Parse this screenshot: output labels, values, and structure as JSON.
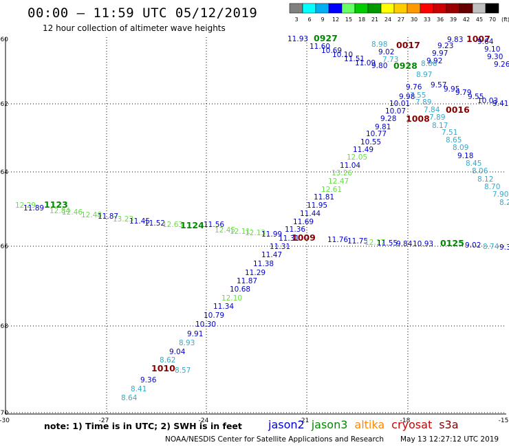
{
  "header": {
    "title": "00:00 – 11:59 UTC 05/12/2019",
    "subtitle": "12 hour collection of altimeter wave heights"
  },
  "colorbar": {
    "labels": [
      "3",
      "6",
      "9",
      "12",
      "15",
      "18",
      "21",
      "24",
      "27",
      "30",
      "33",
      "36",
      "39",
      "42",
      "45",
      "70",
      "(ft)"
    ],
    "colors": [
      "#808080",
      "#00ffff",
      "#00b0f0",
      "#0000ff",
      "#66ff66",
      "#00cc00",
      "#009900",
      "#ffff00",
      "#ffcc00",
      "#ff9900",
      "#ff0000",
      "#cc0000",
      "#990000",
      "#660000",
      "#c0c0c0",
      "#000000"
    ]
  },
  "colors": {
    "jason2": "#0000cc",
    "jason3": "#008800",
    "altika": "#ff8800",
    "cryosat": "#cc0000",
    "s3a": "#800000",
    "cyan": "#33aacc",
    "lightgreen": "#66dd44",
    "darkred": "#880000"
  },
  "axes": {
    "x_ticks": [
      "-27",
      "-24",
      "-21",
      "-18",
      "-15"
    ],
    "y_ticks": [
      "-60",
      "-62",
      "-64",
      "-66",
      "-68",
      "-70"
    ],
    "corner_label": "-30"
  },
  "labels": [
    {
      "t": "11.93",
      "x": 0.0,
      "y": 0.0,
      "c": "jason2"
    }
  ],
  "footer": {
    "note": "note: 1) Time is in UTC; 2) SWH is in feet",
    "credit": "NOAA/NESDIS Center for Satellite Applications and Research",
    "timestamp": "May 13 12:27:12 UTC 2019",
    "legend": [
      {
        "name": "jason2",
        "color": "#0000cc"
      },
      {
        "name": "jason3",
        "color": "#008800"
      },
      {
        "name": "altika",
        "color": "#ff8800"
      },
      {
        "name": "cryosat",
        "color": "#cc0000"
      },
      {
        "name": "s3a",
        "color": "#800000"
      }
    ]
  },
  "track_labels": [
    {
      "t": "11.93",
      "c": "jason2"
    },
    {
      "t": "0927",
      "c": "jason3",
      "big": true
    },
    {
      "t": "11.60",
      "c": "jason2"
    },
    {
      "t": "10.69",
      "c": "jason2"
    },
    {
      "t": "10.10",
      "c": "jason2"
    },
    {
      "t": "11.51",
      "c": "jason2"
    },
    {
      "t": "11.09",
      "c": "jason2"
    },
    {
      "t": "8.98",
      "c": "cyan"
    },
    {
      "t": "0017",
      "c": "darkred",
      "big": true
    },
    {
      "t": "9.02",
      "c": "jason2"
    },
    {
      "t": "7.73",
      "c": "cyan"
    },
    {
      "t": "9.80",
      "c": "jason2"
    },
    {
      "t": "0928",
      "c": "jason3",
      "big": true
    },
    {
      "t": "8.86",
      "c": "cyan"
    },
    {
      "t": "9.83",
      "c": "jason2"
    },
    {
      "t": "1007",
      "c": "darkred",
      "big": true
    },
    {
      "t": "9.64",
      "c": "jason2"
    },
    {
      "t": "9.23",
      "c": "jason2"
    },
    {
      "t": "9.10",
      "c": "jason2"
    },
    {
      "t": "9.97",
      "c": "jason2"
    },
    {
      "t": "9.30",
      "c": "jason2"
    },
    {
      "t": "9.92",
      "c": "jason2"
    },
    {
      "t": "9.26",
      "c": "jason2"
    },
    {
      "t": "8.97",
      "c": "cyan"
    },
    {
      "t": "9.57",
      "c": "jason2"
    },
    {
      "t": "9.95",
      "c": "jason2"
    },
    {
      "t": "9.79",
      "c": "jason2"
    },
    {
      "t": "9.55",
      "c": "jason2"
    },
    {
      "t": "10.03",
      "c": "jason2"
    },
    {
      "t": "9.41",
      "c": "jason2"
    },
    {
      "t": "9.76",
      "c": "jason2"
    },
    {
      "t": "7.55",
      "c": "cyan"
    },
    {
      "t": "9.98",
      "c": "jason2"
    },
    {
      "t": "7.89",
      "c": "cyan"
    },
    {
      "t": "10.01",
      "c": "jason2"
    },
    {
      "t": "7.84",
      "c": "cyan"
    },
    {
      "t": "0016",
      "c": "darkred",
      "big": true
    },
    {
      "t": "10.07",
      "c": "jason2"
    },
    {
      "t": "7.89",
      "c": "cyan"
    },
    {
      "t": "9.28",
      "c": "jason2"
    },
    {
      "t": "1008",
      "c": "darkred",
      "big": true
    },
    {
      "t": "8.17",
      "c": "cyan"
    },
    {
      "t": "9.81",
      "c": "jason2"
    },
    {
      "t": "7.51",
      "c": "cyan"
    },
    {
      "t": "10.77",
      "c": "jason2"
    },
    {
      "t": "8.65",
      "c": "cyan"
    },
    {
      "t": "10.55",
      "c": "jason2"
    },
    {
      "t": "8.09",
      "c": "cyan"
    },
    {
      "t": "11.49",
      "c": "jason2"
    },
    {
      "t": "9.18",
      "c": "jason2"
    },
    {
      "t": "12.05",
      "c": "lightgreen"
    },
    {
      "t": "8.45",
      "c": "cyan"
    },
    {
      "t": "11.04",
      "c": "jason2"
    },
    {
      "t": "8.06",
      "c": "cyan"
    },
    {
      "t": "13.26",
      "c": "lightgreen"
    },
    {
      "t": "8.12",
      "c": "cyan"
    },
    {
      "t": "12.47",
      "c": "lightgreen"
    },
    {
      "t": "8.70",
      "c": "cyan"
    },
    {
      "t": "12.61",
      "c": "lightgreen"
    },
    {
      "t": "7.90",
      "c": "cyan"
    },
    {
      "t": "11.81",
      "c": "jason2"
    },
    {
      "t": "8.2",
      "c": "cyan"
    },
    {
      "t": "11.95",
      "c": "jason2"
    },
    {
      "t": "11.44",
      "c": "jason2"
    },
    {
      "t": "11.69",
      "c": "jason2"
    },
    {
      "t": "11.36",
      "c": "jason2"
    },
    {
      "t": "11.31",
      "c": "jason2"
    },
    {
      "t": "1009",
      "c": "darkred",
      "big": true
    },
    {
      "t": "11.76",
      "c": "jason2"
    },
    {
      "t": "11.75",
      "c": "jason2"
    },
    {
      "t": "12.17",
      "c": "lightgreen"
    },
    {
      "t": "11.55",
      "c": "jason2"
    },
    {
      "t": "9.84",
      "c": "jason2"
    },
    {
      "t": "10.93",
      "c": "jason2"
    },
    {
      "t": "0125",
      "c": "jason3",
      "big": true
    },
    {
      "t": "9.02",
      "c": "jason2"
    },
    {
      "t": "8.74",
      "c": "cyan"
    },
    {
      "t": "9.3",
      "c": "jason2"
    },
    {
      "t": "12.29",
      "c": "lightgreen"
    },
    {
      "t": "1123",
      "c": "jason3",
      "big": true
    },
    {
      "t": "11.89",
      "c": "jason2"
    },
    {
      "t": "12.84",
      "c": "lightgreen"
    },
    {
      "t": "12.46",
      "c": "lightgreen"
    },
    {
      "t": "12.48",
      "c": "lightgreen"
    },
    {
      "t": "11.87",
      "c": "jason2"
    },
    {
      "t": "13.23",
      "c": "lightgreen"
    },
    {
      "t": "11.45",
      "c": "jason2"
    },
    {
      "t": "11.52",
      "c": "jason2"
    },
    {
      "t": "12.63",
      "c": "lightgreen"
    },
    {
      "t": "1124",
      "c": "jason3",
      "big": true
    },
    {
      "t": "11.56",
      "c": "jason2"
    },
    {
      "t": "12.45",
      "c": "lightgreen"
    },
    {
      "t": "12.11",
      "c": "lightgreen"
    },
    {
      "t": "12.13",
      "c": "lightgreen"
    },
    {
      "t": "11.99",
      "c": "jason2"
    },
    {
      "t": "11.31",
      "c": "jason2"
    },
    {
      "t": "11.47",
      "c": "jason2"
    },
    {
      "t": "11.38",
      "c": "jason2"
    },
    {
      "t": "11.29",
      "c": "jason2"
    },
    {
      "t": "11.87",
      "c": "jason2"
    },
    {
      "t": "10.68",
      "c": "jason2"
    },
    {
      "t": "12.10",
      "c": "lightgreen"
    },
    {
      "t": "11.34",
      "c": "jason2"
    },
    {
      "t": "10.79",
      "c": "jason2"
    },
    {
      "t": "10.30",
      "c": "jason2"
    },
    {
      "t": "9.91",
      "c": "jason2"
    },
    {
      "t": "8.93",
      "c": "cyan"
    },
    {
      "t": "9.04",
      "c": "jason2"
    },
    {
      "t": "8.62",
      "c": "cyan"
    },
    {
      "t": "1010",
      "c": "darkred",
      "big": true
    },
    {
      "t": "8.57",
      "c": "cyan"
    },
    {
      "t": "9.36",
      "c": "jason2"
    },
    {
      "t": "8.41",
      "c": "cyan"
    },
    {
      "t": "8.64",
      "c": "cyan"
    }
  ]
}
